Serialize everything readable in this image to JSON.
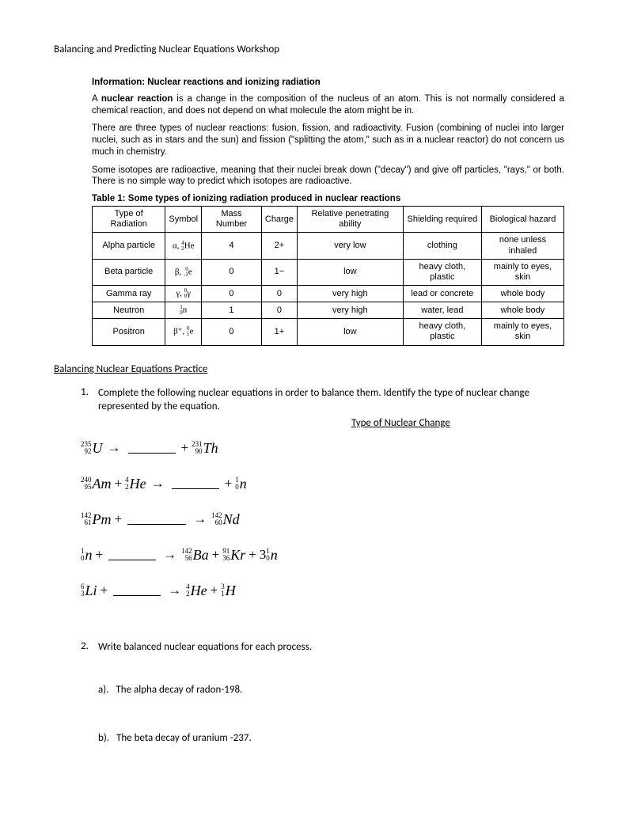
{
  "title": "Balancing and Predicting Nuclear Equations Workshop",
  "info": {
    "heading": "Information: Nuclear reactions and ionizing radiation",
    "p1a": "A ",
    "p1b": "nuclear reaction",
    "p1c": " is a change in the composition of the nucleus of an atom. This is not normally considered a chemical reaction, and does not depend on what molecule the atom might be in.",
    "p2": "There are three types of nuclear reactions: fusion, fission, and radioactivity. Fusion (combining of nuclei into larger nuclei, such as in stars and the sun) and fission (\"splitting the atom,\" such as in a nuclear reactor) do not concern us much in chemistry.",
    "p3": "Some isotopes are radioactive, meaning that their nuclei break down (\"decay\") and give off particles, \"rays,\" or both. There is no simple way to predict which isotopes are radioactive.",
    "table_caption": "Table 1: Some types of ionizing radiation produced in nuclear reactions"
  },
  "table": {
    "headers": [
      "Type of Radiation",
      "Symbol",
      "Mass Number",
      "Charge",
      "Relative penetrating ability",
      "Shielding required",
      "Biological hazard"
    ],
    "rows": [
      {
        "type": "Alpha particle",
        "sym_pre": "α, ",
        "mass": "4",
        "z": "2",
        "el": "He",
        "massnum": "4",
        "charge": "2+",
        "pen": "very low",
        "shield": "clothing",
        "bio": "none unless inhaled"
      },
      {
        "type": "Beta particle",
        "sym_pre": "β, ",
        "mass": "0",
        "z": "-1",
        "el": "e",
        "massnum": "0",
        "charge": "1−",
        "pen": "low",
        "shield": "heavy cloth, plastic",
        "bio": "mainly to eyes, skin"
      },
      {
        "type": "Gamma ray",
        "sym_pre": "γ, ",
        "mass": "0",
        "z": "0",
        "el": "γ",
        "massnum": "0",
        "charge": "0",
        "pen": "very high",
        "shield": "lead or concrete",
        "bio": "whole body"
      },
      {
        "type": "Neutron",
        "sym_pre": "",
        "mass": "1",
        "z": "0",
        "el": "n",
        "massnum": "1",
        "charge": "0",
        "pen": "very high",
        "shield": "water, lead",
        "bio": "whole body"
      },
      {
        "type": "Positron",
        "sym_pre": "β⁺, ",
        "mass": "0",
        "z": "1",
        "el": "e",
        "massnum": "0",
        "charge": "1+",
        "pen": "low",
        "shield": "heavy cloth, plastic",
        "bio": "mainly to eyes, skin"
      }
    ]
  },
  "practice_heading": "Balancing Nuclear Equations Practice",
  "q1": {
    "num": "1.",
    "text": "Complete the following nuclear equations in order to balance them.  Identify the type of nuclear change represented by the equation.",
    "tnc": "Type of Nuclear Change"
  },
  "eqns": [
    {
      "parts": [
        {
          "t": "nuc",
          "mass": "235",
          "z": "92",
          "el": "U"
        },
        {
          "t": "arrow"
        },
        {
          "t": "blank"
        },
        {
          "t": "plus"
        },
        {
          "t": "nuc",
          "mass": "231",
          "z": "90",
          "el": "Th"
        }
      ]
    },
    {
      "parts": [
        {
          "t": "nuc",
          "mass": "240",
          "z": "95",
          "el": "Am"
        },
        {
          "t": "plus"
        },
        {
          "t": "nuc",
          "mass": "4",
          "z": "2",
          "el": "He"
        },
        {
          "t": "arrow"
        },
        {
          "t": "blank"
        },
        {
          "t": "plus"
        },
        {
          "t": "nuc",
          "mass": "1",
          "z": "0",
          "el": "n"
        }
      ]
    },
    {
      "parts": [
        {
          "t": "nuc",
          "mass": "142",
          "z": "61",
          "el": "Pm"
        },
        {
          "t": "plus"
        },
        {
          "t": "blank",
          "w": 74
        },
        {
          "t": "arrow"
        },
        {
          "t": "nuc",
          "mass": "142",
          "z": "60",
          "el": "Nd"
        }
      ]
    },
    {
      "parts": [
        {
          "t": "nuc",
          "mass": "1",
          "z": "0",
          "el": "n"
        },
        {
          "t": "plus"
        },
        {
          "t": "blank"
        },
        {
          "t": "arrow"
        },
        {
          "t": "nuc",
          "mass": "142",
          "z": "56",
          "el": "Ba"
        },
        {
          "t": "plus"
        },
        {
          "t": "nuc",
          "mass": "91",
          "z": "36",
          "el": "Kr"
        },
        {
          "t": "plus"
        },
        {
          "t": "coef",
          "v": "3"
        },
        {
          "t": "nuc",
          "mass": "1",
          "z": "0",
          "el": "n"
        }
      ]
    },
    {
      "parts": [
        {
          "t": "nuc",
          "mass": "6",
          "z": "3",
          "el": "Li"
        },
        {
          "t": "plus"
        },
        {
          "t": "blank"
        },
        {
          "t": "arrow"
        },
        {
          "t": "nuc",
          "mass": "4",
          "z": "2",
          "el": "He"
        },
        {
          "t": "plus"
        },
        {
          "t": "nuc",
          "mass": "3",
          "z": "1",
          "el": "H"
        }
      ]
    }
  ],
  "q2": {
    "num": "2.",
    "text": "Write balanced nuclear equations for each process.",
    "a_lbl": "a).",
    "a_txt": "The alpha decay of radon-198.",
    "b_lbl": "b).",
    "b_txt": "The beta decay of uranium -237."
  }
}
